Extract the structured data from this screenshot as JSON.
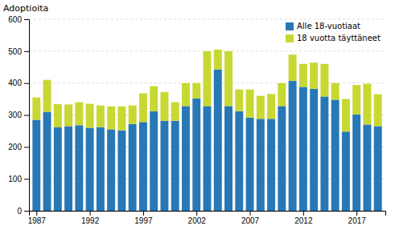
{
  "chart_data": {
    "type": "bar",
    "stacked": true,
    "ylabel": "Adoptioita",
    "x": [
      1987,
      1988,
      1989,
      1990,
      1991,
      1992,
      1993,
      1994,
      1995,
      1996,
      1997,
      1998,
      1999,
      2000,
      2001,
      2002,
      2003,
      2004,
      2005,
      2006,
      2007,
      2008,
      2009,
      2010,
      2011,
      2012,
      2013,
      2014,
      2015,
      2016,
      2017,
      2018,
      2019
    ],
    "series": [
      {
        "name": "Alle 18-vuotiaat",
        "color": "#2878b5",
        "values": [
          285,
          310,
          262,
          265,
          268,
          260,
          262,
          255,
          252,
          272,
          278,
          312,
          282,
          282,
          328,
          352,
          328,
          443,
          328,
          312,
          292,
          288,
          288,
          328,
          407,
          388,
          382,
          358,
          348,
          248,
          302,
          270,
          265
        ]
      },
      {
        "name": "18 vuotta täyttäneet",
        "color": "#c8d832",
        "values": [
          70,
          100,
          72,
          68,
          72,
          75,
          68,
          72,
          75,
          58,
          90,
          78,
          90,
          58,
          72,
          48,
          172,
          62,
          172,
          68,
          88,
          72,
          78,
          72,
          82,
          72,
          82,
          102,
          52,
          102,
          92,
          128,
          100
        ]
      }
    ],
    "xlim": [
      1986.3,
      2019.7
    ],
    "xticks": [
      1987,
      1992,
      1997,
      2002,
      2007,
      2012,
      2017
    ],
    "ylim": [
      0,
      600
    ],
    "yticks": [
      0,
      100,
      200,
      300,
      400,
      500,
      600
    ],
    "grid": true,
    "legend": "upper right"
  }
}
